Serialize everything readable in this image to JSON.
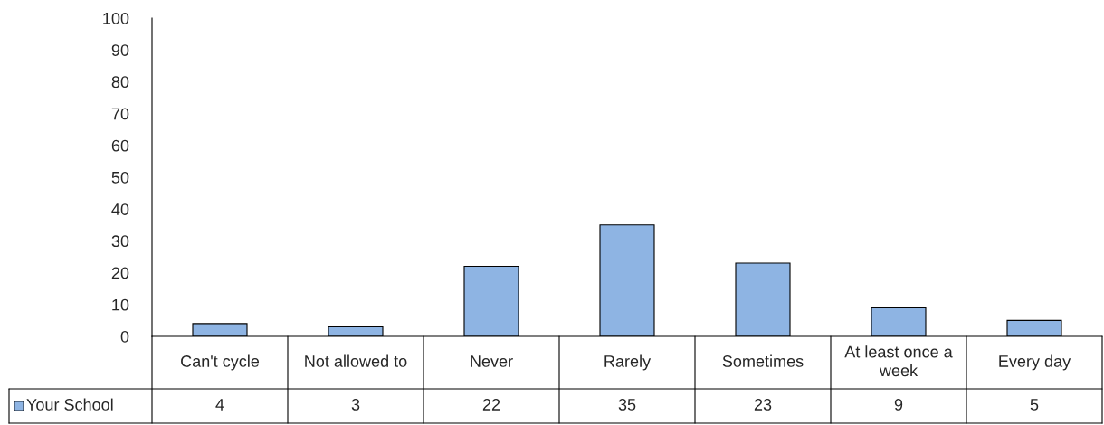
{
  "chart_data": {
    "type": "bar",
    "categories": [
      "Can't cycle",
      "Not allowed to",
      "Never",
      "Rarely",
      "Sometimes",
      "At least once a week",
      "Every day"
    ],
    "series": [
      {
        "name": "Your School",
        "color": "#8eb4e3",
        "values": [
          4,
          3,
          22,
          35,
          23,
          9,
          5
        ]
      }
    ],
    "ylim": [
      0,
      100
    ],
    "yticks": [
      0,
      10,
      20,
      30,
      40,
      50,
      60,
      70,
      80,
      90,
      100
    ],
    "data_labels": true,
    "legend": "bottom",
    "grid": false
  }
}
